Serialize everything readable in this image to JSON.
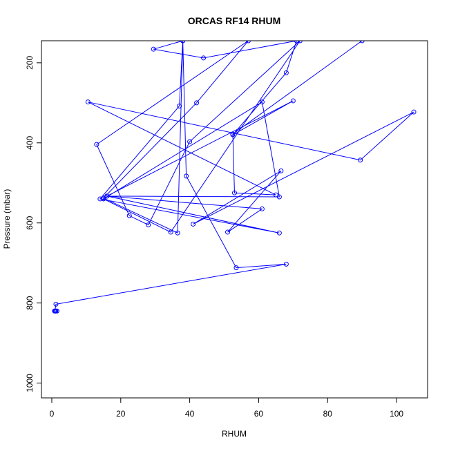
{
  "chart_data": {
    "type": "line",
    "title": "ORCAS RF14 RHUM",
    "xlabel": "RHUM",
    "ylabel": "Pressure (mbar)",
    "xlim": [
      -3,
      109
    ],
    "ylim": [
      1037,
      145
    ],
    "y_reversed": true,
    "xticks": [
      0,
      20,
      40,
      60,
      80,
      100
    ],
    "yticks": [
      200,
      400,
      600,
      800,
      1000
    ],
    "grid": false,
    "line_color": "#0000ff",
    "marker": "open-circle",
    "series": [
      {
        "points_shown_as_markers": [
          [
            1.2,
            820
          ],
          [
            0.8,
            820
          ],
          [
            1.0,
            820
          ],
          [
            1.5,
            820
          ],
          [
            0.9,
            820
          ],
          [
            1.2,
            803
          ],
          [
            68,
            703
          ],
          [
            53.5,
            712
          ],
          [
            39,
            483
          ],
          [
            38,
            145
          ],
          [
            29.5,
            166
          ],
          [
            44,
            188
          ],
          [
            71,
            145
          ],
          [
            68,
            225
          ],
          [
            52.5,
            380
          ],
          [
            70,
            295
          ],
          [
            16,
            533
          ],
          [
            66,
            625
          ],
          [
            14,
            540
          ],
          [
            37,
            308
          ],
          [
            38,
            145
          ],
          [
            36.5,
            625
          ],
          [
            15,
            538
          ],
          [
            42,
            300
          ],
          [
            57,
            145
          ],
          [
            13,
            404
          ],
          [
            22.5,
            582
          ],
          [
            28,
            605
          ],
          [
            40,
            397
          ],
          [
            72,
            145
          ],
          [
            34.5,
            623
          ],
          [
            15,
            540
          ],
          [
            61,
            298
          ],
          [
            66,
            535
          ],
          [
            16,
            533
          ],
          [
            61,
            565
          ],
          [
            51,
            623
          ],
          [
            66.5,
            470
          ],
          [
            41,
            603
          ],
          [
            105,
            323
          ],
          [
            89.5,
            443
          ],
          [
            10.5,
            298
          ],
          [
            65,
            530
          ],
          [
            53,
            525
          ],
          [
            52.5,
            378
          ],
          [
            90,
            145
          ]
        ]
      }
    ]
  }
}
